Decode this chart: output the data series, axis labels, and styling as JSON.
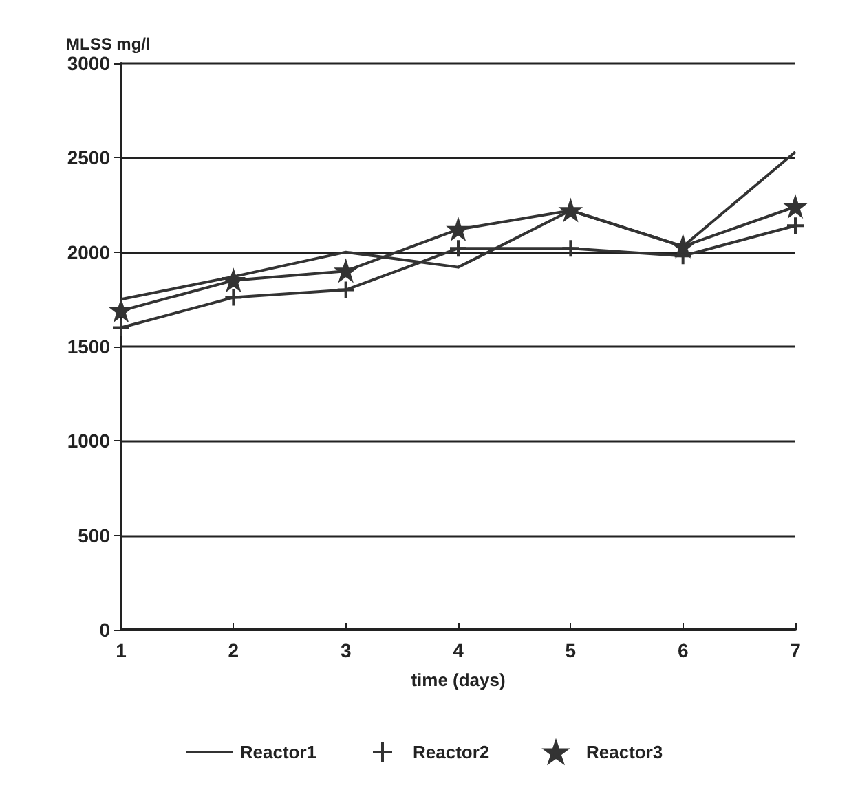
{
  "chart_data": {
    "type": "line",
    "ylabel": "MLSS mg/l",
    "xlabel": "time (days)",
    "x": [
      1,
      2,
      3,
      4,
      5,
      6,
      7
    ],
    "series": [
      {
        "name": "Reactor1",
        "color": "#333333",
        "marker": "none",
        "values": [
          1750,
          1870,
          2000,
          1920,
          2220,
          2030,
          2530
        ]
      },
      {
        "name": "Reactor2",
        "color": "#333333",
        "marker": "cross",
        "values": [
          1600,
          1760,
          1800,
          2020,
          2020,
          1980,
          2140
        ]
      },
      {
        "name": "Reactor3",
        "color": "#333333",
        "marker": "star",
        "values": [
          1690,
          1850,
          1900,
          2120,
          2220,
          2030,
          2240
        ]
      }
    ],
    "xlim": [
      1,
      7
    ],
    "xticks": [
      1,
      2,
      3,
      4,
      5,
      6,
      7
    ],
    "ylim": [
      0,
      3000
    ],
    "yticks": [
      0,
      500,
      1000,
      1500,
      2000,
      2500,
      3000
    ],
    "grid": "y",
    "legend": "bottom"
  }
}
